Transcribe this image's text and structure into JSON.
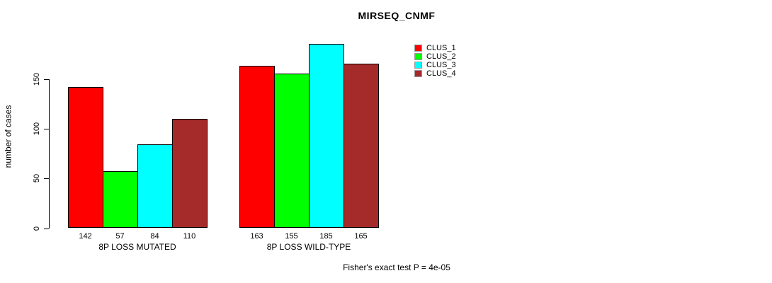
{
  "chart_data": {
    "type": "bar",
    "title": "MIRSEQ_CNMF",
    "ylabel": "number of cases",
    "yticks": [
      0,
      50,
      100,
      150
    ],
    "ylim": [
      0,
      185
    ],
    "grid": false,
    "legend_position": "right-top",
    "categories": [
      "8P LOSS MUTATED",
      "8P LOSS WILD-TYPE"
    ],
    "series": [
      {
        "name": "CLUS_1",
        "color": "#ff0000",
        "values": [
          142,
          163
        ]
      },
      {
        "name": "CLUS_2",
        "color": "#00ff00",
        "values": [
          57,
          155
        ]
      },
      {
        "name": "CLUS_3",
        "color": "#00ffff",
        "values": [
          84,
          185
        ]
      },
      {
        "name": "CLUS_4",
        "color": "#a52a2a",
        "values": [
          110,
          165
        ]
      }
    ],
    "bar_value_labels": {
      "8P LOSS MUTATED": [
        142,
        57,
        84,
        110
      ],
      "8P LOSS WILD-TYPE": [
        163,
        155,
        185,
        165
      ]
    },
    "footnote": "Fisher's exact test P = 4e-05",
    "axis_color": "#000000",
    "text_color": "#000000",
    "background_color": "#ffffff"
  }
}
